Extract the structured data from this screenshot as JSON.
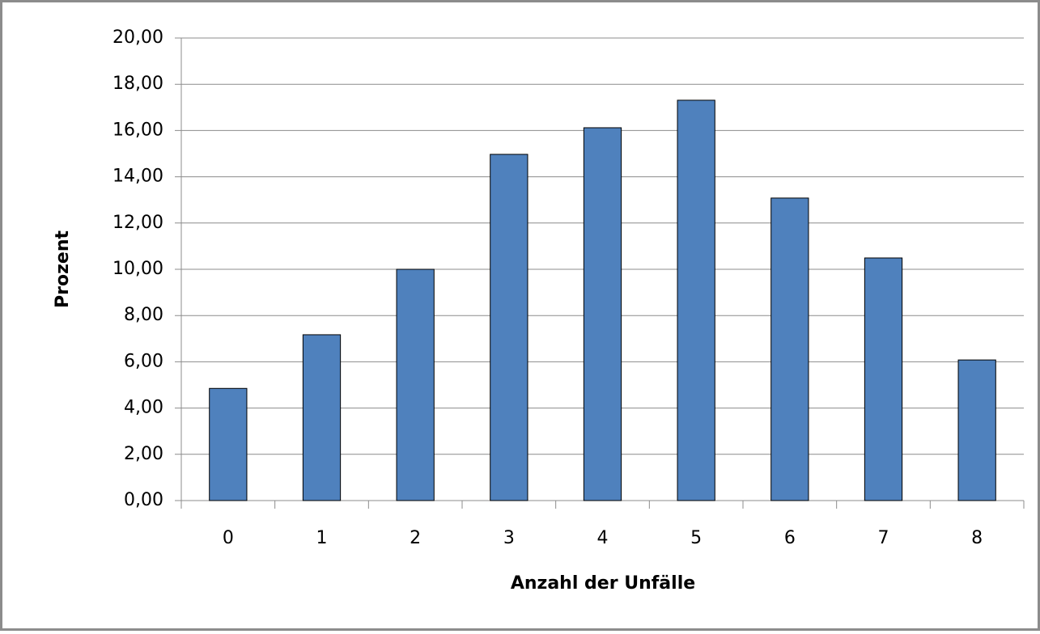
{
  "chart_data": {
    "type": "bar",
    "x_label": "Anzahl der Unfälle",
    "y_label": "Prozent",
    "categories": [
      "0",
      "1",
      "2",
      "3",
      "4",
      "5",
      "6",
      "7",
      "8"
    ],
    "values": [
      4.85,
      7.17,
      10.0,
      14.97,
      16.12,
      17.31,
      13.08,
      10.49,
      6.08
    ],
    "color": "#4f81bd",
    "ylim": [
      0,
      20
    ],
    "yticks": [
      {
        "value": 0,
        "label": "0,00"
      },
      {
        "value": 2,
        "label": "2,00"
      },
      {
        "value": 4,
        "label": "4,00"
      },
      {
        "value": 6,
        "label": "6,00"
      },
      {
        "value": 8,
        "label": "8,00"
      },
      {
        "value": 10,
        "label": "10,00"
      },
      {
        "value": 12,
        "label": "12,00"
      },
      {
        "value": 14,
        "label": "14,00"
      },
      {
        "value": 16,
        "label": "16,00"
      },
      {
        "value": 18,
        "label": "18,00"
      },
      {
        "value": 20,
        "label": "20,00"
      }
    ],
    "grid": true
  }
}
